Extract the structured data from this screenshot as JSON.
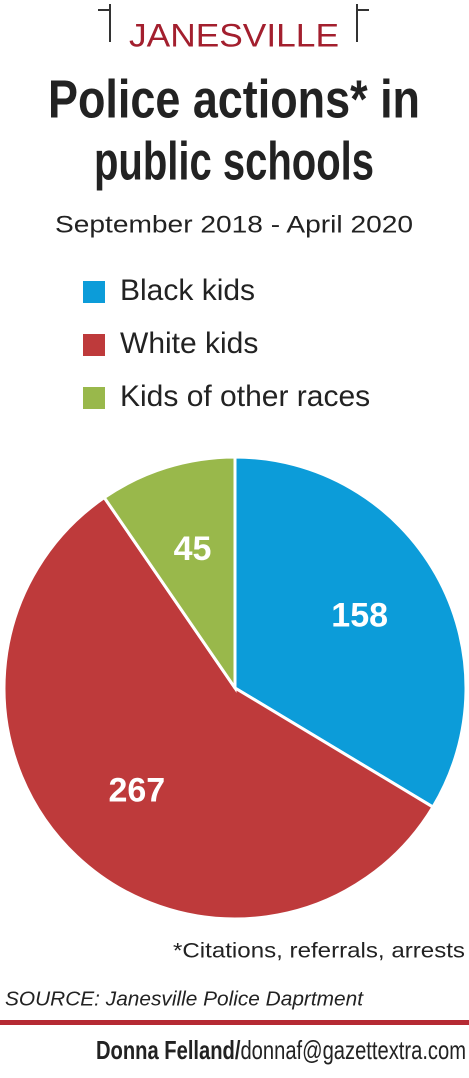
{
  "chart_data": {
    "type": "pie",
    "kicker": "JANESVILLE",
    "title_lines": [
      "Police actions* in",
      "public schools"
    ],
    "subtitle": "September 2018 - April 2020",
    "categories": [
      "Black kids",
      "White kids",
      "Kids of other races"
    ],
    "values": [
      158,
      267,
      45
    ],
    "colors": [
      "#0c9cd9",
      "#be3a3b",
      "#99b84b"
    ],
    "footnote": "*Citations, referrals, arrests",
    "source": "SOURCE: Janesville Police Daprtment",
    "credit": [
      "Donna Felland/",
      "donnaf@gazettextra.com"
    ]
  }
}
